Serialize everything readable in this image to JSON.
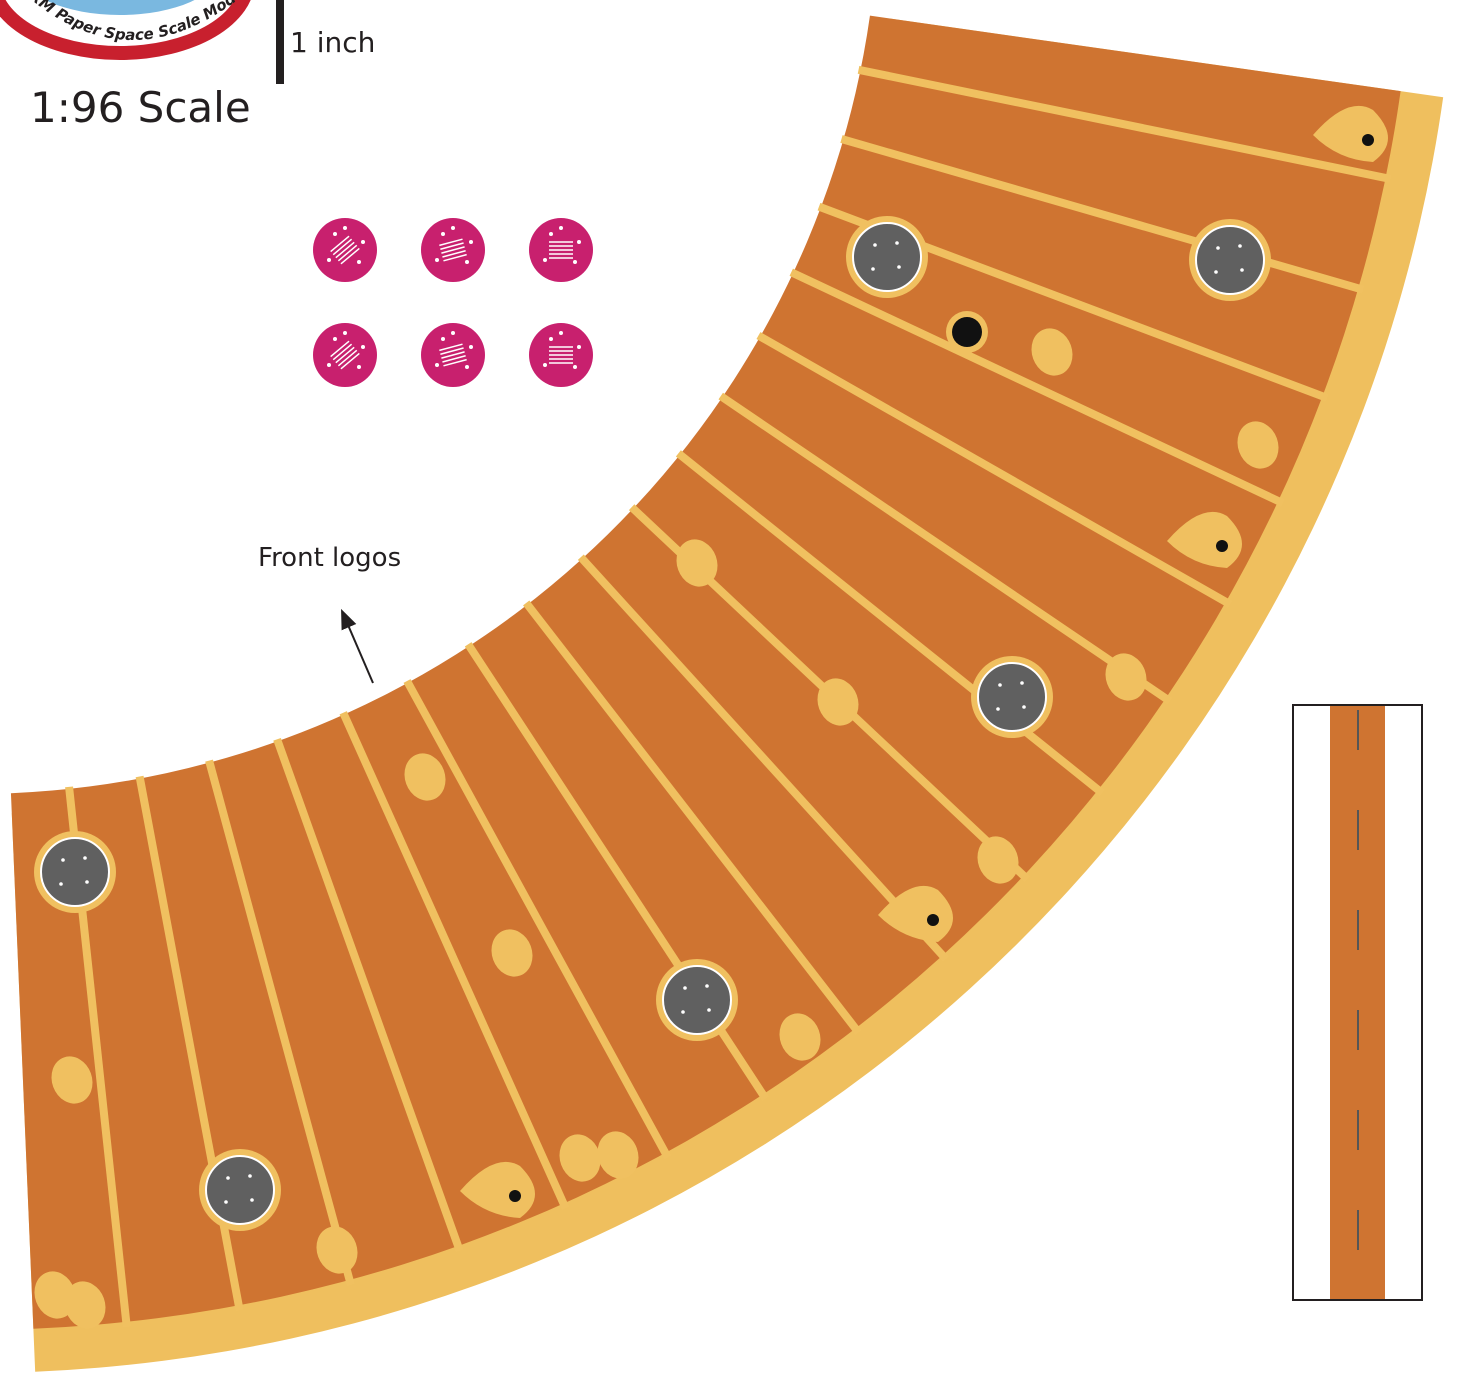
{
  "logo": {
    "text": "AXM Paper Space Scale Modeling"
  },
  "scale_bar": {
    "label": "1 inch"
  },
  "scale": "1:96 Scale",
  "annotation": "Front logos"
}
